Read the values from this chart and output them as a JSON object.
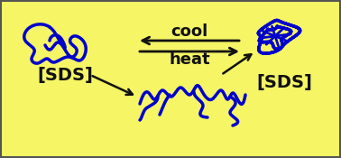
{
  "bg_color": "#f5f566",
  "border_color": "#555555",
  "blue_color": "#0000cc",
  "black_color": "#111111",
  "text_sds_left": "[SDS]",
  "text_sds_right": "[SDS]",
  "text_heat": "heat",
  "text_cool": "cool",
  "fig_width": 3.78,
  "fig_height": 1.75,
  "dpi": 100
}
